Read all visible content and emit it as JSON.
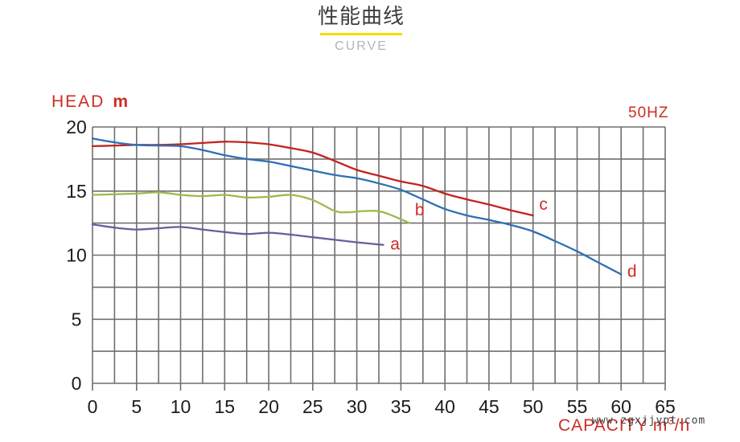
{
  "header": {
    "title": "性能曲线",
    "subtitle": "CURVE"
  },
  "chart": {
    "head_label": "HEAD",
    "head_unit": "m",
    "freq_label": "50HZ",
    "capacity_prefix": "CAPACITY m",
    "capacity_sup": "3",
    "capacity_suffix": "/h"
  },
  "watermark": "www.zgxjjypt.com",
  "colors": {
    "label_red": "#cf2b24",
    "grid_gray": "#6f6f6f",
    "tick_text": "#1b1b1b",
    "title_underline_yellow": "#f2df00",
    "subtitle_gray": "#b4b4b4"
  },
  "chart_data": {
    "type": "line",
    "title": "性能曲线 (CURVE)",
    "xlabel": "CAPACITY m³/h",
    "ylabel": "HEAD m",
    "annotation": "50HZ",
    "xlim": [
      0,
      65
    ],
    "ylim": [
      0,
      20
    ],
    "x_ticks": [
      0,
      5,
      10,
      15,
      20,
      25,
      30,
      35,
      40,
      45,
      50,
      55,
      60,
      65
    ],
    "y_ticks": [
      0,
      5,
      10,
      15,
      20
    ],
    "x_minor_step": 2.5,
    "y_minor_step": 2.5,
    "grid": true,
    "legend_position": "none",
    "series": [
      {
        "name": "a",
        "color": "#6e5a9f",
        "label_at": [
          33.8,
          10.45
        ],
        "points": [
          [
            0,
            12.4
          ],
          [
            2.5,
            12.15
          ],
          [
            5,
            12.0
          ],
          [
            7.5,
            12.1
          ],
          [
            10,
            12.2
          ],
          [
            12.5,
            12.0
          ],
          [
            15,
            11.8
          ],
          [
            17.5,
            11.65
          ],
          [
            20,
            11.75
          ],
          [
            22.5,
            11.6
          ],
          [
            25,
            11.4
          ],
          [
            27.5,
            11.2
          ],
          [
            30,
            11.0
          ],
          [
            33,
            10.8
          ]
        ]
      },
      {
        "name": "b",
        "color": "#9cba4b",
        "label_at": [
          36.6,
          13.1
        ],
        "points": [
          [
            0,
            14.7
          ],
          [
            2.5,
            14.75
          ],
          [
            5,
            14.8
          ],
          [
            7.5,
            14.9
          ],
          [
            10,
            14.7
          ],
          [
            12.5,
            14.6
          ],
          [
            15,
            14.7
          ],
          [
            17.5,
            14.5
          ],
          [
            20,
            14.55
          ],
          [
            22.5,
            14.7
          ],
          [
            25,
            14.3
          ],
          [
            27.5,
            13.45
          ],
          [
            29,
            13.35
          ],
          [
            31,
            13.45
          ],
          [
            33,
            13.35
          ],
          [
            36,
            12.5
          ]
        ]
      },
      {
        "name": "c",
        "color": "#c4231e",
        "label_at": [
          50.7,
          13.55
        ],
        "points": [
          [
            0,
            18.5
          ],
          [
            2.5,
            18.55
          ],
          [
            5,
            18.6
          ],
          [
            7.5,
            18.6
          ],
          [
            10,
            18.65
          ],
          [
            12.5,
            18.75
          ],
          [
            15,
            18.85
          ],
          [
            17.5,
            18.8
          ],
          [
            20,
            18.65
          ],
          [
            22.5,
            18.35
          ],
          [
            25,
            18.0
          ],
          [
            27.5,
            17.35
          ],
          [
            30,
            16.65
          ],
          [
            32.5,
            16.2
          ],
          [
            35,
            15.75
          ],
          [
            37.5,
            15.4
          ],
          [
            40,
            14.8
          ],
          [
            42.5,
            14.35
          ],
          [
            45,
            13.95
          ],
          [
            47.5,
            13.5
          ],
          [
            50,
            13.1
          ]
        ]
      },
      {
        "name": "d",
        "color": "#2d6fb5",
        "label_at": [
          60.7,
          8.3
        ],
        "points": [
          [
            0,
            19.1
          ],
          [
            2.5,
            18.8
          ],
          [
            5,
            18.6
          ],
          [
            7.5,
            18.55
          ],
          [
            10,
            18.5
          ],
          [
            12.5,
            18.2
          ],
          [
            15,
            17.8
          ],
          [
            17.5,
            17.5
          ],
          [
            20,
            17.3
          ],
          [
            22.5,
            16.95
          ],
          [
            25,
            16.6
          ],
          [
            27.5,
            16.25
          ],
          [
            30,
            16.0
          ],
          [
            32.5,
            15.6
          ],
          [
            35,
            15.1
          ],
          [
            37.5,
            14.35
          ],
          [
            40,
            13.6
          ],
          [
            42.5,
            13.1
          ],
          [
            45,
            12.75
          ],
          [
            47.5,
            12.35
          ],
          [
            50,
            11.85
          ],
          [
            52.5,
            11.1
          ],
          [
            55,
            10.3
          ],
          [
            57.5,
            9.4
          ],
          [
            60,
            8.5
          ]
        ]
      }
    ]
  }
}
